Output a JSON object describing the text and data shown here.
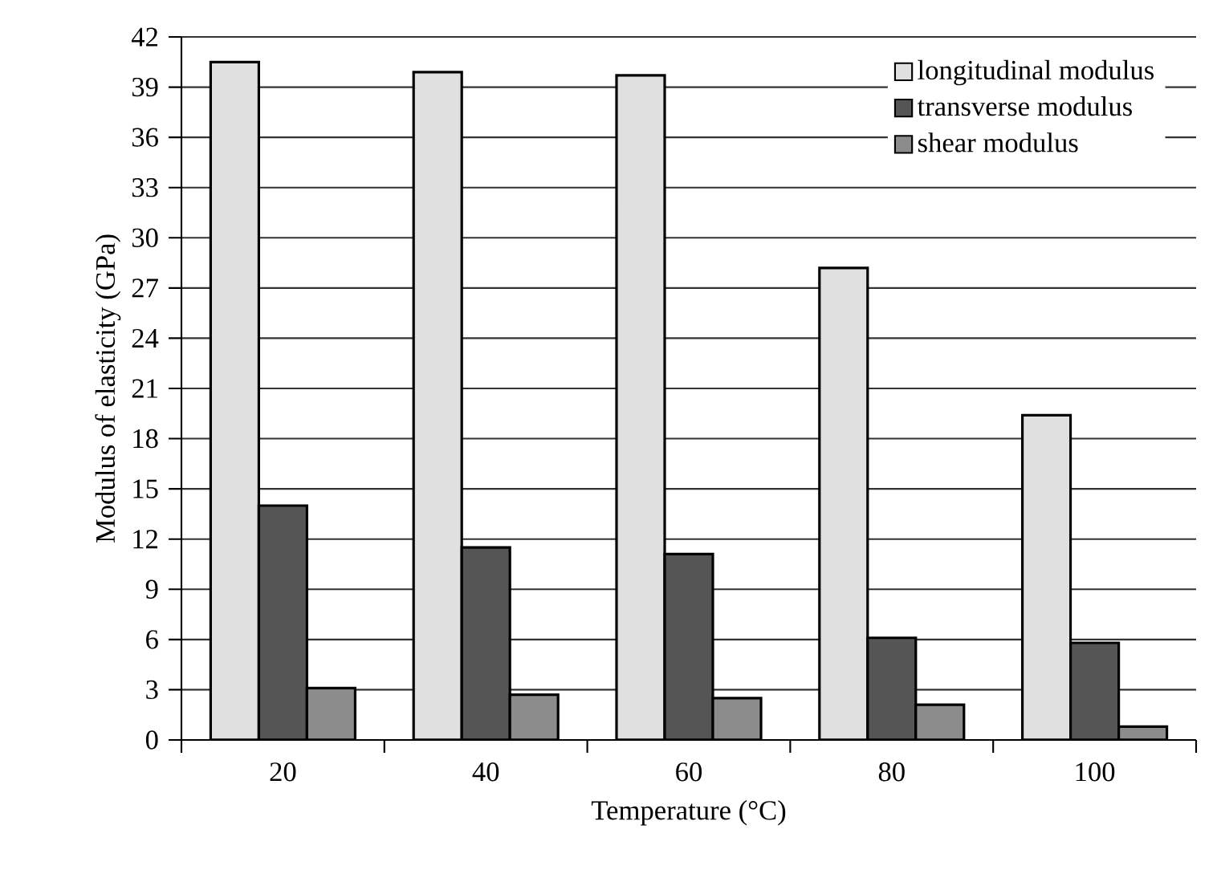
{
  "chart_data": {
    "type": "bar",
    "xlabel": "Temperature (°C)",
    "ylabel": "Modulus of elasticity (GPa)",
    "categories": [
      "20",
      "40",
      "60",
      "80",
      "100"
    ],
    "series": [
      {
        "name": "longitudinal modulus",
        "color": "#e0e0e0",
        "values": [
          40.5,
          39.9,
          39.7,
          28.2,
          19.4
        ]
      },
      {
        "name": "transverse modulus",
        "color": "#555555",
        "values": [
          14.0,
          11.5,
          11.1,
          6.1,
          5.8
        ]
      },
      {
        "name": "shear modulus",
        "color": "#8c8c8c",
        "values": [
          3.1,
          2.7,
          2.5,
          2.1,
          0.8
        ]
      }
    ],
    "ylim": [
      0,
      42
    ],
    "yticks": [
      0,
      3,
      6,
      9,
      12,
      15,
      18,
      21,
      24,
      27,
      30,
      33,
      36,
      39,
      42
    ],
    "grid": "y",
    "legend": "top right"
  }
}
